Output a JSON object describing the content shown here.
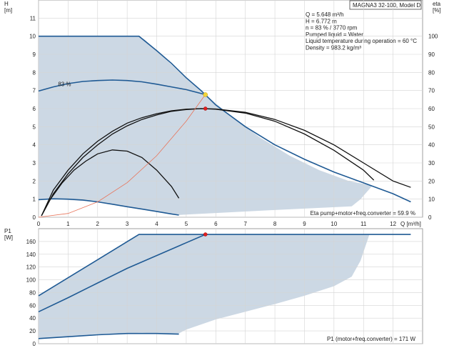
{
  "colors": {
    "envelope_fill": "#ccd8e4",
    "curve_blue": "#1f5a94",
    "curve_black": "#111111",
    "system_curve": "#e8745a",
    "duty_point_yellow": "#f2d43a",
    "duty_point_red": "#e02020",
    "grid": "#d4d4d4"
  },
  "title_box": "MAGNA3 32-100, Model D",
  "info_lines": [
    "Q = 5.648 m³/h",
    "H = 6.772 m",
    "n = 83 % / 3770 rpm",
    "Pumped liquid = Water",
    "Liquid temperature during operation = 60 °C",
    "Density = 983.2 kg/m³"
  ],
  "chart_data": [
    {
      "type": "line",
      "title": "",
      "ylabel_left": "H\n[m]",
      "ylabel_right": "eta\n[%]",
      "xlabel": "Q [m³/h]",
      "xlim": [
        0,
        13
      ],
      "ylim": [
        0,
        12
      ],
      "ylim_right": [
        0,
        120
      ],
      "xticks": [
        0,
        1,
        2,
        3,
        4,
        5,
        6,
        7,
        8,
        9,
        10,
        11,
        12
      ],
      "yticks": [
        0,
        1,
        2,
        3,
        4,
        5,
        6,
        7,
        8,
        9,
        10,
        11
      ],
      "yticks_right": [
        0,
        10,
        20,
        30,
        40,
        50,
        60,
        70,
        80,
        90,
        100
      ],
      "efficiency_footer": "Eta pump+motor+freq.converter = 59.9 %",
      "curve_label": "83 %",
      "curve_label_at": [
        0.95,
        7.25
      ],
      "envelope": {
        "x": [
          0,
          3.4,
          3.6,
          4.2,
          5.0,
          5.65,
          6.5,
          7.5,
          8.5,
          9.5,
          10.5,
          11.3,
          10.9,
          10.6,
          8,
          5,
          4.7,
          3.5,
          2,
          0.8,
          0
        ],
        "y": [
          10.0,
          10.0,
          9.8,
          8.9,
          7.65,
          6.78,
          5.6,
          4.4,
          3.4,
          2.6,
          2.0,
          1.75,
          1.0,
          0.6,
          0.4,
          0.15,
          0.12,
          0.45,
          0.85,
          0.97,
          1.0
        ]
      },
      "series": [
        {
          "style": "blue",
          "x": [
            0,
            3.4,
            4.0,
            4.5,
            5.0,
            5.5,
            6.0,
            7.0,
            8.0,
            9.0,
            10.0,
            11.0,
            12.0,
            12.6
          ],
          "y": [
            10.0,
            10.0,
            9.2,
            8.5,
            7.7,
            7.0,
            6.2,
            5.0,
            4.0,
            3.2,
            2.5,
            1.9,
            1.3,
            0.85
          ]
        },
        {
          "style": "blue",
          "x": [
            0,
            0.5,
            1.0,
            1.5,
            2.0,
            2.5,
            3.0,
            3.5,
            4.0,
            4.5,
            5.0,
            5.648
          ],
          "y": [
            6.97,
            7.2,
            7.38,
            7.5,
            7.55,
            7.58,
            7.55,
            7.48,
            7.35,
            7.2,
            7.05,
            6.772
          ]
        },
        {
          "style": "blue",
          "x": [
            0,
            0.5,
            1.0,
            1.5,
            2.0,
            2.5,
            3.0,
            3.5,
            4.0,
            4.5,
            4.75
          ],
          "y": [
            0.97,
            1.02,
            1.0,
            0.95,
            0.85,
            0.72,
            0.58,
            0.45,
            0.32,
            0.18,
            0.12
          ]
        },
        {
          "style": "black",
          "x": [
            0.1,
            0.5,
            1.0,
            1.5,
            2.0,
            2.5,
            3.0,
            3.5,
            4.0,
            4.5,
            5.0,
            5.5,
            6.0,
            7.0,
            8.0,
            9.0,
            10.0,
            11.0,
            12.0,
            12.6
          ],
          "y": [
            0.08,
            1.3,
            2.4,
            3.3,
            4.0,
            4.6,
            5.05,
            5.4,
            5.65,
            5.85,
            5.95,
            6.0,
            5.98,
            5.8,
            5.4,
            4.8,
            4.0,
            3.0,
            2.0,
            1.65
          ]
        },
        {
          "style": "black",
          "x": [
            0.1,
            0.5,
            1.0,
            1.5,
            2.0,
            2.5,
            3.0,
            3.5,
            4.0,
            4.5,
            5.0,
            5.5,
            6.0,
            7.0,
            8.0,
            9.0,
            10.0,
            11.0,
            11.35
          ],
          "y": [
            0.08,
            1.5,
            2.6,
            3.5,
            4.2,
            4.75,
            5.2,
            5.5,
            5.72,
            5.88,
            5.97,
            6.0,
            5.97,
            5.75,
            5.3,
            4.6,
            3.7,
            2.6,
            2.05
          ]
        },
        {
          "style": "black",
          "x": [
            0.1,
            0.4,
            0.8,
            1.2,
            1.6,
            2.0,
            2.5,
            3.0,
            3.5,
            4.0,
            4.5,
            4.75
          ],
          "y": [
            0.08,
            1.0,
            1.9,
            2.6,
            3.1,
            3.5,
            3.72,
            3.65,
            3.3,
            2.6,
            1.7,
            1.05
          ]
        },
        {
          "style": "system",
          "x": [
            0,
            1,
            2,
            3,
            4,
            5,
            5.648
          ],
          "y": [
            0,
            0.21,
            0.85,
            1.91,
            3.4,
            5.31,
            6.772
          ]
        }
      ],
      "duty_points": [
        {
          "x": 5.648,
          "y": 6.772,
          "color": "yellow"
        },
        {
          "x": 5.648,
          "y": 6.0,
          "color": "red"
        }
      ]
    },
    {
      "type": "line",
      "title": "",
      "ylabel_left": "P1\n[W]",
      "xlim": [
        0,
        13
      ],
      "ylim": [
        0,
        180
      ],
      "yticks": [
        0,
        20,
        40,
        60,
        80,
        100,
        120,
        140,
        160
      ],
      "footer": "P1 (motor+freq.converter) = 171 W",
      "envelope": {
        "x": [
          0,
          3.4,
          11.2,
          10.9,
          10.6,
          10.0,
          9.0,
          8.0,
          7.0,
          6.0,
          5.0,
          4.7,
          3.5,
          2.0,
          0
        ],
        "y": [
          75,
          171,
          171,
          130,
          105,
          90,
          75,
          62,
          50,
          38,
          22,
          15,
          17,
          15,
          8
        ]
      },
      "series": [
        {
          "style": "blue",
          "x": [
            0,
            3.4,
            12.6
          ],
          "y": [
            75,
            171,
            171
          ]
        },
        {
          "style": "blue",
          "x": [
            0,
            1,
            2,
            3,
            4,
            5,
            5.648
          ],
          "y": [
            50,
            72,
            95,
            118,
            138,
            158,
            171
          ]
        },
        {
          "style": "blue",
          "x": [
            0,
            1,
            2,
            3,
            4,
            4.75
          ],
          "y": [
            8,
            11,
            14,
            16,
            16,
            15
          ]
        }
      ],
      "duty_points": [
        {
          "x": 5.648,
          "y": 171,
          "color": "red"
        }
      ]
    }
  ]
}
